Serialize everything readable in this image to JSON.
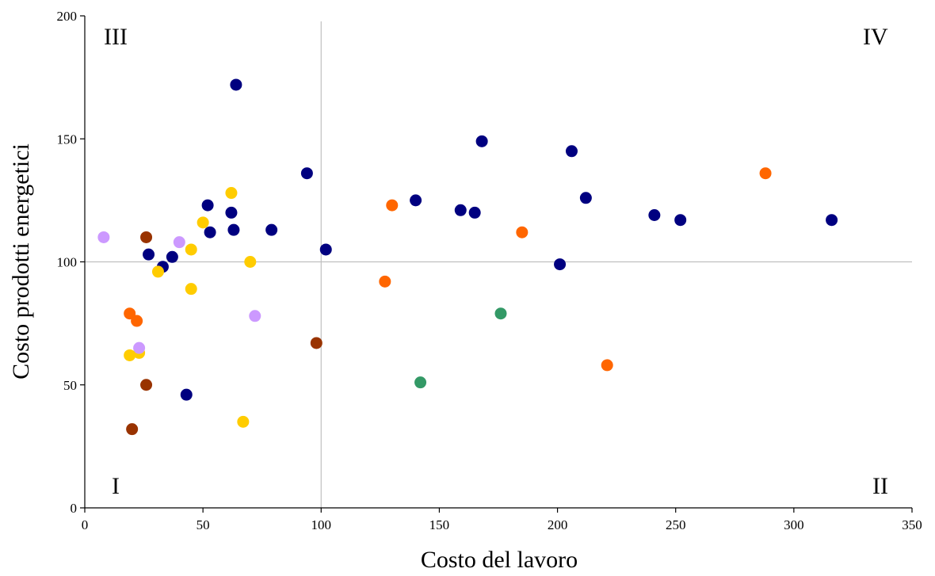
{
  "chart_data": {
    "type": "scatter",
    "title": "",
    "xlabel": "Costo del lavoro",
    "ylabel": "Costo prodotti energetici",
    "xlim": [
      0,
      350
    ],
    "ylim": [
      0,
      200
    ],
    "xticks": [
      0,
      50,
      100,
      150,
      200,
      250,
      300,
      350
    ],
    "yticks": [
      0,
      50,
      100,
      150,
      200
    ],
    "reference_lines": {
      "x": 100,
      "y": 100
    },
    "quadrant_labels": {
      "top_left": "III",
      "top_right": "IV",
      "bottom_left": "I",
      "bottom_right": "II"
    },
    "grid": false,
    "legend": "none",
    "series": [
      {
        "color": "#000080",
        "points": [
          [
            64,
            172
          ],
          [
            94,
            136
          ],
          [
            168,
            149
          ],
          [
            206,
            145
          ],
          [
            212,
            126
          ],
          [
            140,
            125
          ],
          [
            159,
            121
          ],
          [
            165,
            120
          ],
          [
            241,
            119
          ],
          [
            252,
            117
          ],
          [
            316,
            117
          ],
          [
            52,
            123
          ],
          [
            62,
            120
          ],
          [
            63,
            113
          ],
          [
            79,
            113
          ],
          [
            53,
            112
          ],
          [
            102,
            105
          ],
          [
            27,
            103
          ],
          [
            37,
            102
          ],
          [
            33,
            98
          ],
          [
            201,
            99
          ],
          [
            43,
            46
          ]
        ]
      },
      {
        "color": "#FF6600",
        "points": [
          [
            288,
            136
          ],
          [
            130,
            123
          ],
          [
            185,
            112
          ],
          [
            127,
            92
          ],
          [
            221,
            58
          ],
          [
            19,
            79
          ],
          [
            22,
            76
          ]
        ]
      },
      {
        "color": "#FFCC00",
        "points": [
          [
            62,
            128
          ],
          [
            50,
            116
          ],
          [
            45,
            105
          ],
          [
            70,
            100
          ],
          [
            31,
            96
          ],
          [
            45,
            89
          ],
          [
            19,
            62
          ],
          [
            23,
            63
          ],
          [
            67,
            35
          ]
        ]
      },
      {
        "color": "#993300",
        "points": [
          [
            26,
            110
          ],
          [
            98,
            67
          ],
          [
            26,
            50
          ],
          [
            20,
            32
          ]
        ]
      },
      {
        "color": "#CC99FF",
        "points": [
          [
            8,
            110
          ],
          [
            40,
            108
          ],
          [
            72,
            78
          ],
          [
            23,
            65
          ]
        ]
      },
      {
        "color": "#339966",
        "points": [
          [
            176,
            79
          ],
          [
            142,
            51
          ]
        ]
      }
    ]
  }
}
